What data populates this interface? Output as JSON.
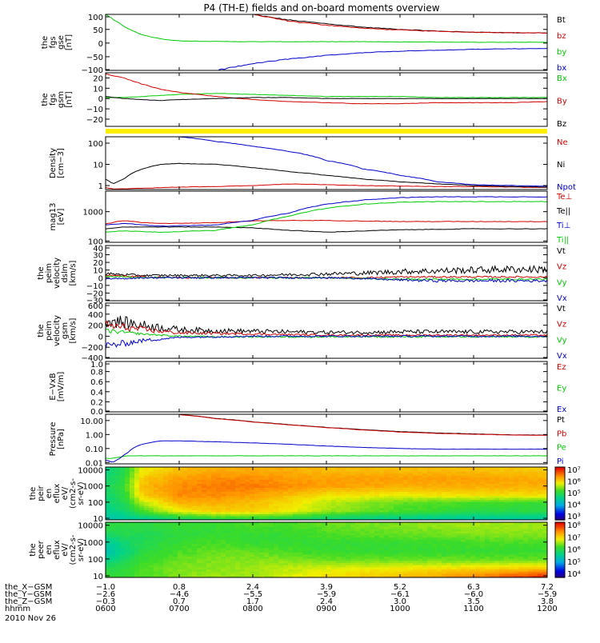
{
  "title": "P4 (TH-E) fields and on-board moments overview",
  "date": "2010 Nov 26",
  "chart_data": [
    {
      "id": "p1",
      "type": "line",
      "ylabel": [
        "the",
        "fgs",
        "gse",
        "[nT]"
      ],
      "yticks": [
        "100",
        "50",
        "0",
        "−50",
        "−100"
      ],
      "ytick_values": [
        100,
        50,
        0,
        -50,
        -100
      ],
      "ylim": [
        -100,
        105
      ],
      "x": [
        6.0,
        6.25,
        6.5,
        6.75,
        7.0,
        7.5,
        8.0,
        8.5,
        9.0,
        9.5,
        10.0,
        10.5,
        11.0,
        11.5,
        12.0
      ],
      "series": [
        {
          "name": "Bt",
          "color": "#000000",
          "values": [
            null,
            null,
            null,
            null,
            null,
            null,
            104,
            84,
            71,
            58,
            50,
            44,
            40,
            38,
            37
          ]
        },
        {
          "name": "bz",
          "color": "#d40000",
          "values": [
            null,
            null,
            null,
            null,
            null,
            null,
            105,
            80,
            66,
            54,
            48,
            43,
            40,
            38,
            37
          ]
        },
        {
          "name": "by",
          "color": "#00cc00",
          "values": [
            105,
            60,
            30,
            15,
            8,
            6,
            5,
            5,
            5,
            5,
            4,
            4,
            3,
            3,
            3
          ]
        },
        {
          "name": "bx",
          "color": "#0000cc",
          "values": [
            null,
            null,
            null,
            null,
            null,
            -100,
            -75,
            -58,
            -45,
            -35,
            -30,
            -26,
            -23,
            -21,
            -20
          ]
        }
      ]
    },
    {
      "id": "p2",
      "type": "line",
      "ylabel": [
        "the",
        "fgs",
        "gsm",
        "[nT]"
      ],
      "yticks": [
        "20",
        "10",
        "0",
        "−10",
        "−20"
      ],
      "ytick_values": [
        20,
        10,
        0,
        -10,
        -20
      ],
      "ylim": [
        -27,
        25
      ],
      "x": [
        6.0,
        6.25,
        6.5,
        6.75,
        7.0,
        7.5,
        8.0,
        8.5,
        9.0,
        9.5,
        10.0,
        10.5,
        11.0,
        11.5,
        12.0
      ],
      "series": [
        {
          "name": "Bx",
          "color": "#00cc00",
          "values": [
            1,
            1,
            2,
            3,
            4,
            5,
            4,
            3,
            2,
            2,
            2,
            1,
            1,
            1,
            1
          ]
        },
        {
          "name": "By",
          "color": "#d40000",
          "values": [
            24,
            20,
            14,
            9,
            6,
            2,
            -1,
            -3,
            -4,
            -5,
            -5,
            -4,
            -4,
            -4,
            -3
          ]
        },
        {
          "name": "Bz",
          "color": "#000000",
          "values": [
            2,
            0,
            -1,
            -2,
            -1,
            0,
            1,
            1,
            0,
            0,
            0,
            0,
            0,
            0,
            0
          ]
        }
      ]
    },
    {
      "id": "p3",
      "type": "line",
      "log": true,
      "ylabel": [
        "Density",
        "[cm−3]"
      ],
      "yticks": [
        "100",
        "10",
        "1"
      ],
      "ytick_values": [
        100,
        10,
        1
      ],
      "ylim": [
        0.65,
        200
      ],
      "x": [
        6.0,
        6.1,
        6.25,
        6.5,
        6.75,
        7.0,
        7.5,
        8.0,
        8.5,
        9.0,
        9.5,
        10.0,
        10.5,
        11.0,
        11.5,
        12.0
      ],
      "series": [
        {
          "name": "Ne",
          "color": "#d40000",
          "values": [
            0.8,
            0.7,
            0.7,
            0.75,
            0.8,
            0.85,
            0.9,
            1.0,
            1.2,
            1.1,
            1.0,
            0.95,
            0.9,
            0.9,
            0.85,
            0.8
          ]
        },
        {
          "name": "Ni",
          "color": "#000000",
          "values": [
            2.0,
            1.2,
            2.0,
            6,
            10,
            11,
            10,
            7,
            4.5,
            3,
            2,
            1.5,
            1.2,
            1.0,
            0.9,
            0.85
          ]
        },
        {
          "name": "Npot",
          "color": "#0000cc",
          "values": [
            null,
            null,
            null,
            null,
            null,
            200,
            120,
            70,
            40,
            15,
            6,
            3,
            1.5,
            1.1,
            1.0,
            0.95
          ]
        }
      ]
    },
    {
      "id": "p4",
      "type": "line",
      "log": true,
      "ylabel": [
        "mag13",
        "[eV]"
      ],
      "yticks": [
        "1000",
        "100"
      ],
      "ytick_values": [
        1000,
        100
      ],
      "ylim": [
        90,
        5000
      ],
      "x": [
        6.0,
        6.25,
        6.5,
        6.75,
        7.0,
        7.5,
        8.0,
        8.5,
        9.0,
        9.5,
        10.0,
        10.5,
        11.0,
        11.5,
        12.0
      ],
      "series": [
        {
          "name": "Te⊥",
          "color": "#d40000",
          "values": [
            380,
            500,
            420,
            400,
            400,
            420,
            480,
            500,
            500,
            480,
            460,
            460,
            460,
            460,
            460
          ]
        },
        {
          "name": "Te||",
          "color": "#000000",
          "values": [
            260,
            300,
            300,
            300,
            300,
            300,
            280,
            230,
            200,
            220,
            240,
            250,
            260,
            260,
            260
          ]
        },
        {
          "name": "Ti⊥",
          "color": "#0000cc",
          "values": [
            350,
            400,
            350,
            320,
            330,
            350,
            500,
            900,
            1800,
            2500,
            3000,
            3200,
            3200,
            3200,
            3200
          ]
        },
        {
          "name": "Ti||",
          "color": "#00cc00",
          "values": [
            200,
            220,
            210,
            200,
            210,
            230,
            350,
            700,
            1300,
            1800,
            2100,
            2200,
            2200,
            2200,
            2200
          ]
        }
      ]
    },
    {
      "id": "p5",
      "type": "line",
      "noisy": true,
      "ylabel": [
        "the",
        "peim",
        "velocity",
        "dslm",
        "[km/s]"
      ],
      "yticks": [
        "40",
        "30",
        "20",
        "10",
        "0",
        "−10",
        "−20",
        "−30"
      ],
      "ytick_values": [
        40,
        30,
        20,
        10,
        0,
        -10,
        -20,
        -30
      ],
      "ylim": [
        -30,
        42
      ],
      "x": [
        6.0,
        6.5,
        7.0,
        7.5,
        8.0,
        8.5,
        9.0,
        9.5,
        10.0,
        10.5,
        11.0,
        11.5,
        12.0
      ],
      "series": [
        {
          "name": "Vt",
          "color": "#000000",
          "values": [
            5,
            3,
            3,
            3,
            3,
            4,
            5,
            6,
            8,
            9,
            10,
            11,
            11
          ]
        },
        {
          "name": "Vz",
          "color": "#d40000",
          "values": [
            3,
            1,
            0,
            0,
            0,
            0,
            0,
            0,
            1,
            1,
            1,
            1,
            1
          ]
        },
        {
          "name": "Vy",
          "color": "#00cc00",
          "values": [
            2,
            0,
            0,
            0,
            0,
            0,
            0,
            -1,
            -2,
            -2,
            -2,
            -2,
            -2
          ]
        },
        {
          "name": "Vx",
          "color": "#0000cc",
          "values": [
            -2,
            0,
            0,
            0,
            0,
            0,
            0,
            -1,
            -3,
            -4,
            -4,
            -4,
            -4
          ]
        }
      ]
    },
    {
      "id": "p6",
      "type": "line",
      "noisy": true,
      "ylabel": [
        "the",
        "peim",
        "velocity",
        "gsm",
        "[km/s]"
      ],
      "yticks": [
        "600",
        "400",
        "200",
        "0",
        "−200",
        "−400"
      ],
      "ytick_values": [
        600,
        400,
        200,
        0,
        -200,
        -400
      ],
      "ylim": [
        -400,
        600
      ],
      "x": [
        6.0,
        6.5,
        7.0,
        7.5,
        8.0,
        8.5,
        9.0,
        9.5,
        10.0,
        10.5,
        11.0,
        11.5,
        12.0
      ],
      "series": [
        {
          "name": "Vt",
          "color": "#000000",
          "values": [
            300,
            200,
            120,
            100,
            90,
            80,
            70,
            70,
            80,
            80,
            80,
            80,
            80
          ]
        },
        {
          "name": "Vz",
          "color": "#d40000",
          "values": [
            200,
            120,
            60,
            50,
            40,
            30,
            20,
            20,
            20,
            20,
            20,
            20,
            20
          ]
        },
        {
          "name": "Vy",
          "color": "#00cc00",
          "values": [
            100,
            40,
            0,
            -10,
            -10,
            -10,
            -10,
            -10,
            -10,
            -10,
            -10,
            -10,
            -10
          ]
        },
        {
          "name": "Vx",
          "color": "#0000cc",
          "values": [
            -180,
            -80,
            -20,
            -10,
            0,
            0,
            0,
            0,
            0,
            0,
            0,
            0,
            0
          ]
        }
      ]
    },
    {
      "id": "p7",
      "type": "line",
      "ylabel": [
        "E−VxB",
        "[mV/m]"
      ],
      "yticks": [
        "1.0",
        "0.8",
        "0.6",
        "0.4",
        "0.2",
        "0.0"
      ],
      "ytick_values": [
        1.0,
        0.8,
        0.6,
        0.4,
        0.2,
        0.0
      ],
      "ylim": [
        0,
        1.0
      ],
      "x": [],
      "legend_only": true,
      "series": [
        {
          "name": "Ez",
          "color": "#d40000",
          "values": []
        },
        {
          "name": "Ey",
          "color": "#00cc00",
          "values": []
        },
        {
          "name": "Ex",
          "color": "#0000cc",
          "values": []
        }
      ]
    },
    {
      "id": "p8",
      "type": "line",
      "log": true,
      "ylabel": [
        "Pressure",
        "[nPa]"
      ],
      "yticks": [
        "10.00",
        "1.00",
        "0.10",
        "0.01"
      ],
      "ytick_values": [
        10,
        1,
        0.1,
        0.01
      ],
      "ylim": [
        0.008,
        28
      ],
      "x": [
        6.0,
        6.1,
        6.2,
        6.3,
        6.5,
        6.75,
        7.0,
        7.5,
        8.0,
        8.5,
        9.0,
        9.5,
        10.0,
        10.5,
        11.0,
        11.5,
        12.0
      ],
      "series": [
        {
          "name": "Pt",
          "color": "#000000",
          "values": [
            null,
            null,
            null,
            null,
            null,
            null,
            27,
            14,
            8,
            5,
            3.2,
            2.2,
            1.6,
            1.3,
            1.1,
            0.95,
            0.9
          ]
        },
        {
          "name": "Pb",
          "color": "#d40000",
          "values": [
            null,
            null,
            null,
            null,
            null,
            null,
            26,
            13.5,
            7.8,
            4.8,
            3.1,
            2.1,
            1.5,
            1.2,
            1.05,
            0.92,
            0.88
          ]
        },
        {
          "name": "Pe",
          "color": "#00cc00",
          "values": [
            0.02,
            0.02,
            0.025,
            0.03,
            0.03,
            0.03,
            0.03,
            0.03,
            0.03,
            0.03,
            0.03,
            0.03,
            0.03,
            0.03,
            0.03,
            0.03,
            0.03
          ]
        },
        {
          "name": "Pi",
          "color": "#0000cc",
          "values": [
            0.015,
            0.01,
            0.02,
            0.05,
            0.2,
            0.35,
            0.35,
            0.3,
            0.25,
            0.2,
            0.15,
            0.12,
            0.1,
            0.09,
            0.09,
            0.09,
            0.09
          ]
        }
      ]
    },
    {
      "id": "p9",
      "type": "heatmap",
      "ylabel": [
        "the",
        "peir",
        "en",
        "eflux",
        "eV/",
        "(cm2-s-",
        "sr-eV)"
      ],
      "yticks": [
        "10000",
        "1000",
        "100",
        "10"
      ],
      "ytick_values": [
        10000,
        1000,
        100,
        10
      ],
      "ylim": [
        8,
        15000
      ],
      "log": true,
      "colorbar": {
        "ticks": [
          "10⁷",
          "10⁶",
          "10⁵",
          "10⁴",
          "10³"
        ],
        "min_exp": 2.7,
        "max_exp": 7.1
      },
      "x_regions": [
        6.0,
        6.25,
        6.5,
        7.0,
        7.5,
        8.0,
        8.5,
        9.0,
        10.0,
        11.0,
        12.0
      ],
      "y_regions": [
        10,
        30,
        100,
        300,
        1000,
        3000,
        10000
      ],
      "z_log": [
        [
          4.3,
          4.4,
          4.5,
          4.8,
          5.0,
          5.0,
          4.9,
          4.7,
          4.5,
          4.4,
          4.4
        ],
        [
          4.5,
          4.7,
          5.2,
          5.8,
          6.0,
          6.0,
          5.8,
          5.5,
          5.2,
          5.0,
          5.0
        ],
        [
          4.6,
          4.9,
          5.6,
          6.2,
          6.2,
          6.1,
          5.9,
          5.6,
          5.3,
          5.2,
          5.1
        ],
        [
          4.7,
          5.0,
          6.0,
          6.4,
          6.4,
          6.3,
          6.1,
          5.9,
          5.8,
          5.9,
          5.9
        ],
        [
          4.8,
          5.1,
          6.1,
          6.4,
          6.5,
          6.5,
          6.4,
          6.3,
          6.2,
          6.2,
          6.2
        ],
        [
          4.7,
          5.0,
          6.0,
          6.3,
          6.4,
          6.4,
          6.3,
          6.3,
          6.3,
          6.3,
          6.2
        ],
        [
          4.6,
          4.9,
          5.8,
          6.1,
          6.2,
          6.2,
          6.2,
          6.1,
          6.1,
          6.1,
          6.0
        ]
      ]
    },
    {
      "id": "p10",
      "type": "heatmap",
      "ylabel": [
        "the",
        "peer",
        "en",
        "eflux",
        "eV/",
        "(cm2-s-",
        "sr-eV)"
      ],
      "yticks": [
        "10000",
        "1000",
        "100",
        "10"
      ],
      "ytick_values": [
        10000,
        1000,
        100,
        10
      ],
      "ylim": [
        8,
        15000
      ],
      "log": true,
      "colorbar": {
        "ticks": [
          "10⁸",
          "10⁷",
          "10⁶",
          "10⁵",
          "10⁴"
        ],
        "min_exp": 3.8,
        "max_exp": 8.2
      },
      "x_regions": [
        6.0,
        6.25,
        6.5,
        7.0,
        7.5,
        8.0,
        8.5,
        9.0,
        10.0,
        11.0,
        12.0
      ],
      "y_regions": [
        10,
        30,
        100,
        300,
        1000,
        3000,
        10000
      ],
      "z_log": [
        [
          6.2,
          6.2,
          6.3,
          6.5,
          6.6,
          6.6,
          6.8,
          7.0,
          7.2,
          7.5,
          8.0
        ],
        [
          6.0,
          6.1,
          6.3,
          6.5,
          6.5,
          6.6,
          6.7,
          6.8,
          6.9,
          7.0,
          7.1
        ],
        [
          5.6,
          5.9,
          6.2,
          6.4,
          6.5,
          6.5,
          6.5,
          6.4,
          6.4,
          6.4,
          6.4
        ],
        [
          5.4,
          5.7,
          6.1,
          6.3,
          6.4,
          6.4,
          6.3,
          6.2,
          6.2,
          6.2,
          6.2
        ],
        [
          5.5,
          5.8,
          6.0,
          6.2,
          6.3,
          6.2,
          6.2,
          6.2,
          6.2,
          6.3,
          6.3
        ],
        [
          5.9,
          6.0,
          6.0,
          6.1,
          6.2,
          6.2,
          6.2,
          6.3,
          6.4,
          6.5,
          6.5
        ],
        [
          6.1,
          6.1,
          6.1,
          6.2,
          6.2,
          6.3,
          6.3,
          6.4,
          6.5,
          6.6,
          6.6
        ]
      ]
    }
  ],
  "xaxis": {
    "row_labels": [
      "the_X−GSM",
      "the_Y−GSM",
      "the_Z−GSM",
      "hhmm"
    ],
    "tick_hours": [
      6,
      7,
      8,
      9,
      10,
      11,
      12
    ],
    "rows": [
      [
        "−1.0",
        "0.8",
        "2.4",
        "3.9",
        "5.2",
        "6.3",
        "7.2"
      ],
      [
        "−2.6",
        "−4.6",
        "−5.5",
        "−5.9",
        "−6.1",
        "−6.0",
        "−5.9"
      ],
      [
        "−0.3",
        "0.7",
        "1.7",
        "2.4",
        "3.0",
        "3.5",
        "3.8"
      ],
      [
        "0600",
        "0700",
        "0800",
        "0900",
        "1000",
        "1100",
        "1200"
      ]
    ]
  }
}
